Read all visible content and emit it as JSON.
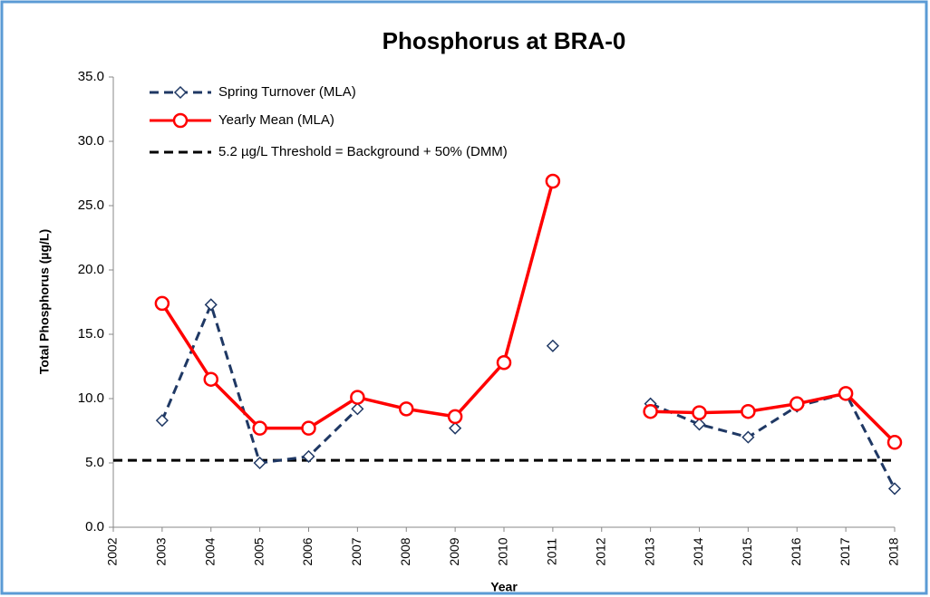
{
  "chart_data": {
    "type": "line",
    "title": "Phosphorus at BRA-0",
    "x_label": "Year",
    "y_label": "Total Phosphorus (µg/L)",
    "xlim": [
      2002,
      2018
    ],
    "xticks": [
      2002,
      2003,
      2004,
      2005,
      2006,
      2007,
      2008,
      2009,
      2010,
      2011,
      2012,
      2013,
      2014,
      2015,
      2016,
      2017,
      2018
    ],
    "ylim": [
      0,
      35
    ],
    "yticks": [
      {
        "value": 0,
        "label": "0.0"
      },
      {
        "value": 5,
        "label": "5.0"
      },
      {
        "value": 10,
        "label": "10.0"
      },
      {
        "value": 15,
        "label": "15.0"
      },
      {
        "value": 20,
        "label": "20.0"
      },
      {
        "value": 25,
        "label": "25.0"
      },
      {
        "value": 30,
        "label": "30.0"
      },
      {
        "value": 35,
        "label": "35.0"
      }
    ],
    "x": [
      2003,
      2004,
      2005,
      2006,
      2007,
      2008,
      2009,
      2010,
      2011,
      2012,
      2013,
      2014,
      2015,
      2016,
      2017,
      2018
    ],
    "series": [
      {
        "name": "Spring Turnover (MLA)",
        "color": "#1f3864",
        "marker": "diamond",
        "dashed": true,
        "values": [
          8.3,
          17.3,
          5.0,
          5.5,
          9.2,
          null,
          7.7,
          null,
          14.1,
          null,
          9.6,
          8.0,
          7.0,
          9.4,
          10.4,
          3.0
        ]
      },
      {
        "name": "Yearly Mean (MLA)",
        "color": "#ff0000",
        "marker": "circle",
        "dashed": false,
        "values": [
          17.4,
          11.5,
          7.7,
          7.7,
          10.1,
          9.2,
          8.6,
          12.8,
          26.9,
          null,
          9.0,
          8.9,
          9.0,
          9.6,
          10.4,
          6.6
        ]
      }
    ],
    "threshold": {
      "name": "5.2 µg/L Threshold = Background + 50% (DMM)",
      "value": 5.2,
      "color": "#000000"
    },
    "legend": "upper left"
  }
}
